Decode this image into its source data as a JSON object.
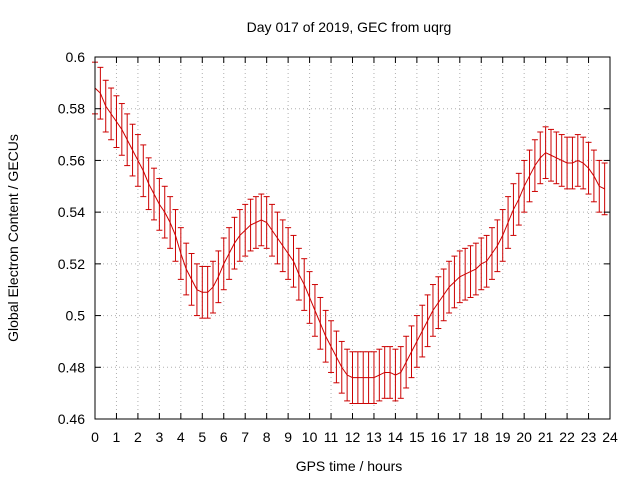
{
  "chart_data": {
    "type": "line",
    "title": "Day 017 of 2019, GEC from uqrg",
    "xlabel": "GPS time / hours",
    "ylabel": "Global Electron Content / GECUs",
    "xlim": [
      0,
      24
    ],
    "ylim": [
      0.46,
      0.6
    ],
    "xticks": [
      0,
      1,
      2,
      3,
      4,
      5,
      6,
      7,
      8,
      9,
      10,
      11,
      12,
      13,
      14,
      15,
      16,
      17,
      18,
      19,
      20,
      21,
      22,
      23,
      24
    ],
    "yticks": [
      0.46,
      0.48,
      0.5,
      0.52,
      0.54,
      0.56,
      0.58,
      0.6
    ],
    "xtick_labels": [
      "0",
      "1",
      "2",
      "3",
      "4",
      "5",
      "6",
      "7",
      "8",
      "9",
      "10",
      "11",
      "12",
      "13",
      "14",
      "15",
      "16",
      "17",
      "18",
      "19",
      "20",
      "21",
      "22",
      "23",
      "24"
    ],
    "ytick_labels": [
      "0.46",
      "0.48",
      "0.5",
      "0.52",
      "0.54",
      "0.56",
      "0.58",
      "0.6"
    ],
    "grid": true,
    "series_color": "#cc0000",
    "series": [
      {
        "name": "GEC",
        "error": 0.01,
        "x": [
          0,
          0.25,
          0.5,
          0.75,
          1,
          1.25,
          1.5,
          1.75,
          2,
          2.25,
          2.5,
          2.75,
          3,
          3.25,
          3.5,
          3.75,
          4,
          4.25,
          4.5,
          4.75,
          5,
          5.25,
          5.5,
          5.75,
          6,
          6.25,
          6.5,
          6.75,
          7,
          7.25,
          7.5,
          7.75,
          8,
          8.25,
          8.5,
          8.75,
          9,
          9.25,
          9.5,
          9.75,
          10,
          10.25,
          10.5,
          10.75,
          11,
          11.25,
          11.5,
          11.75,
          12,
          12.25,
          12.5,
          12.75,
          13,
          13.25,
          13.5,
          13.75,
          14,
          14.25,
          14.5,
          14.75,
          15,
          15.25,
          15.5,
          15.75,
          16,
          16.25,
          16.5,
          16.75,
          17,
          17.25,
          17.5,
          17.75,
          18,
          18.25,
          18.5,
          18.75,
          19,
          19.25,
          19.5,
          19.75,
          20,
          20.25,
          20.5,
          20.75,
          21,
          21.25,
          21.5,
          21.75,
          22,
          22.25,
          22.5,
          22.75,
          23,
          23.25,
          23.5,
          23.75
        ],
        "values": [
          0.588,
          0.586,
          0.581,
          0.578,
          0.575,
          0.572,
          0.568,
          0.564,
          0.56,
          0.556,
          0.551,
          0.547,
          0.543,
          0.54,
          0.536,
          0.531,
          0.524,
          0.518,
          0.514,
          0.51,
          0.509,
          0.509,
          0.511,
          0.515,
          0.52,
          0.524,
          0.528,
          0.531,
          0.533,
          0.535,
          0.536,
          0.537,
          0.536,
          0.533,
          0.53,
          0.527,
          0.524,
          0.521,
          0.516,
          0.512,
          0.507,
          0.502,
          0.497,
          0.492,
          0.488,
          0.484,
          0.48,
          0.477,
          0.476,
          0.476,
          0.476,
          0.476,
          0.476,
          0.477,
          0.478,
          0.478,
          0.477,
          0.478,
          0.482,
          0.486,
          0.49,
          0.494,
          0.498,
          0.502,
          0.505,
          0.508,
          0.511,
          0.513,
          0.515,
          0.516,
          0.517,
          0.518,
          0.52,
          0.521,
          0.524,
          0.527,
          0.531,
          0.536,
          0.541,
          0.545,
          0.55,
          0.554,
          0.558,
          0.561,
          0.563,
          0.562,
          0.561,
          0.56,
          0.559,
          0.559,
          0.56,
          0.559,
          0.557,
          0.554,
          0.55,
          0.549
        ]
      }
    ]
  }
}
